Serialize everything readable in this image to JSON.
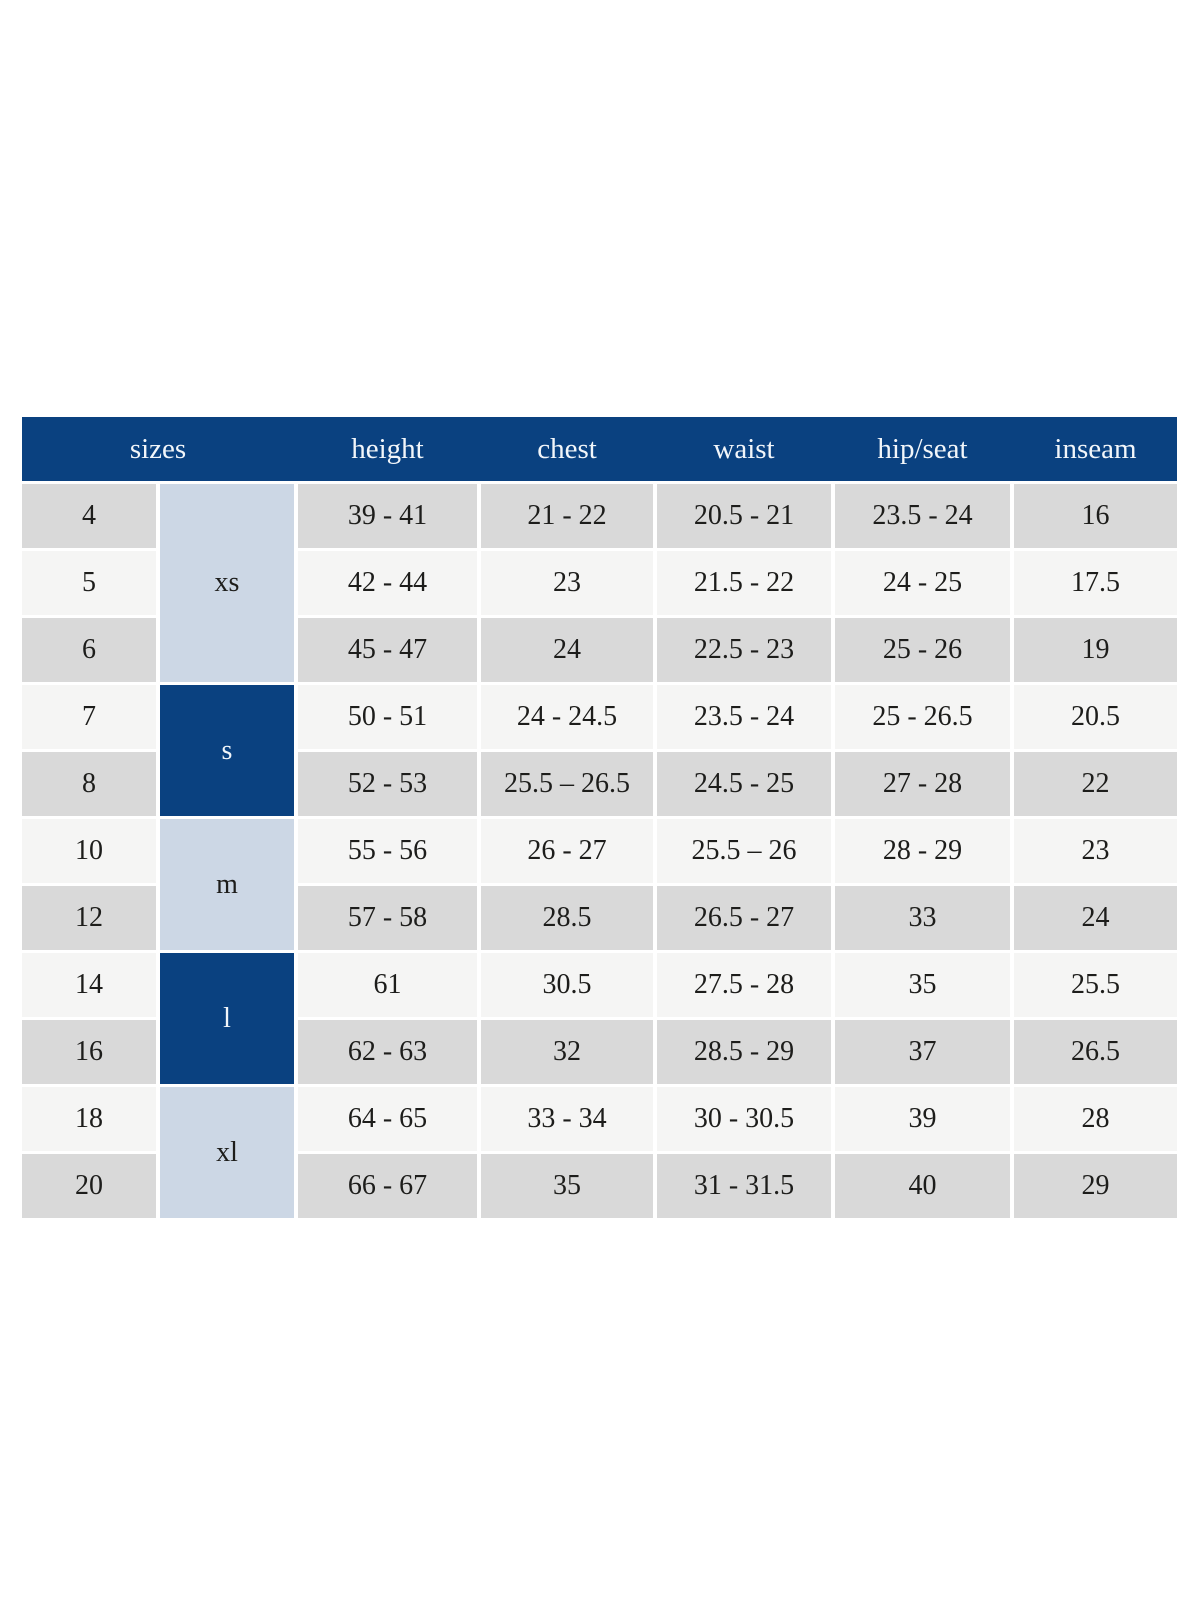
{
  "chart_data": {
    "type": "table",
    "columns": [
      "sizes",
      "height",
      "chest",
      "waist",
      "hip/seat",
      "inseam"
    ],
    "groups": [
      {
        "label": "xs",
        "row_span": 3,
        "variant": "light",
        "sizes": [
          "4",
          "5",
          "6"
        ]
      },
      {
        "label": "s",
        "row_span": 2,
        "variant": "dark",
        "sizes": [
          "7",
          "8"
        ]
      },
      {
        "label": "m",
        "row_span": 2,
        "variant": "light",
        "sizes": [
          "10",
          "12"
        ]
      },
      {
        "label": "l",
        "row_span": 2,
        "variant": "dark",
        "sizes": [
          "14",
          "16"
        ]
      },
      {
        "label": "xl",
        "row_span": 2,
        "variant": "light",
        "sizes": [
          "18",
          "20"
        ]
      }
    ],
    "rows": [
      {
        "size": "4",
        "group": "xs",
        "height": "39 - 41",
        "chest": "21 - 22",
        "waist": "20.5 - 21",
        "hip_seat": "23.5 - 24",
        "inseam": "16"
      },
      {
        "size": "5",
        "group": "xs",
        "height": "42 - 44",
        "chest": "23",
        "waist": "21.5 - 22",
        "hip_seat": "24 - 25",
        "inseam": "17.5"
      },
      {
        "size": "6",
        "group": "xs",
        "height": "45 - 47",
        "chest": "24",
        "waist": "22.5 - 23",
        "hip_seat": "25 - 26",
        "inseam": "19"
      },
      {
        "size": "7",
        "group": "s",
        "height": "50 - 51",
        "chest": "24 - 24.5",
        "waist": "23.5 - 24",
        "hip_seat": "25 - 26.5",
        "inseam": "20.5"
      },
      {
        "size": "8",
        "group": "s",
        "height": "52 - 53",
        "chest": "25.5 – 26.5",
        "waist": "24.5 - 25",
        "hip_seat": "27 - 28",
        "inseam": "22"
      },
      {
        "size": "10",
        "group": "m",
        "height": "55 - 56",
        "chest": "26 - 27",
        "waist": "25.5 – 26",
        "hip_seat": "28 - 29",
        "inseam": "23"
      },
      {
        "size": "12",
        "group": "m",
        "height": "57 - 58",
        "chest": "28.5",
        "waist": "26.5 - 27",
        "hip_seat": "33",
        "inseam": "24"
      },
      {
        "size": "14",
        "group": "l",
        "height": "61",
        "chest": "30.5",
        "waist": "27.5 - 28",
        "hip_seat": "35",
        "inseam": "25.5"
      },
      {
        "size": "16",
        "group": "l",
        "height": "62 - 63",
        "chest": "32",
        "waist": "28.5 - 29",
        "hip_seat": "37",
        "inseam": "26.5"
      },
      {
        "size": "18",
        "group": "xl",
        "height": "64 - 65",
        "chest": "33 - 34",
        "waist": "30 - 30.5",
        "hip_seat": "39",
        "inseam": "28"
      },
      {
        "size": "20",
        "group": "xl",
        "height": "66 - 67",
        "chest": "35",
        "waist": "31 - 31.5",
        "hip_seat": "40",
        "inseam": "29"
      }
    ]
  },
  "colors": {
    "header_bg": "#0a4180",
    "header_text": "#f2f6fa",
    "group_dark_bg": "#0a4180",
    "group_dark_text": "#f2f6fa",
    "group_light_bg": "#ccd7e5",
    "row_dark_bg": "#d9d9d9",
    "row_light_bg": "#f5f5f4",
    "body_text": "#1d1d1b",
    "page_bg": "#ffffff"
  }
}
